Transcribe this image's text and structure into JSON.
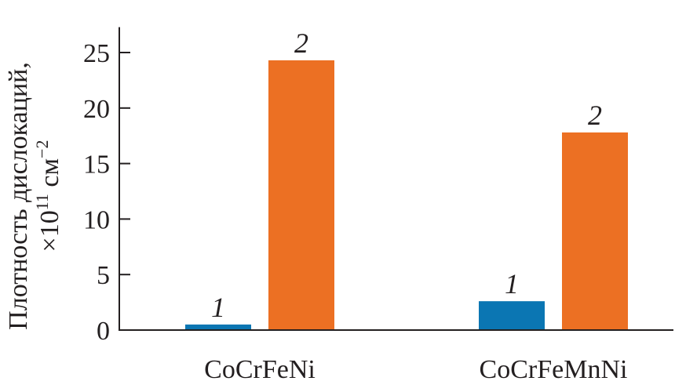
{
  "chart_data": {
    "type": "bar",
    "categories": [
      "CoCrFeNi",
      "CoCrFeMnNi"
    ],
    "series": [
      {
        "name": "1",
        "values": [
          0.5,
          2.6
        ],
        "color": "#0b76b3"
      },
      {
        "name": "2",
        "values": [
          24.3,
          17.8
        ],
        "color": "#ec7023"
      }
    ],
    "ylabel_line1": "Плотность дислокаций,",
    "ylabel_line2_prefix": "×10",
    "ylabel_exp": "11",
    "ylabel_unit": " см",
    "ylabel_unit_exp": "−2",
    "xlabel": "",
    "ylim": [
      0,
      27
    ],
    "yticks": [
      0,
      5,
      10,
      15,
      20,
      25
    ],
    "grid": false,
    "legend": "none (italic numbers above bars)"
  }
}
